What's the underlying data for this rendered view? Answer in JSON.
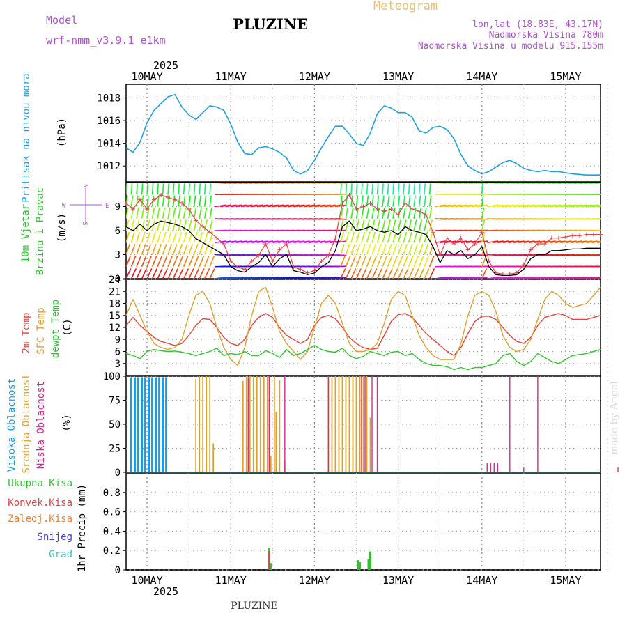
{
  "header": {
    "model_label": "Model",
    "model_name": "wrf-nmm_v3.9.1 e1km",
    "title": "PLUZINE",
    "meteogram": "Meteogram",
    "coords": "lon,lat (18.83E, 43.17N)",
    "elevation": "Nadmorska Visina 780m",
    "model_elevation": "Nadmorska Visina u modelu 915.155m",
    "year": "2025",
    "footer_title": "PLUZINE",
    "credit": "made by Angel"
  },
  "days": [
    "10MAY",
    "11MAY",
    "12MAY",
    "13MAY",
    "14MAY",
    "15MAY"
  ],
  "colors": {
    "pressure": "#1ea0e6",
    "t2m": "#e8403a",
    "tsfc": "#e0a030",
    "dew": "#28c828",
    "high": "#1e9be0",
    "mid": "#e0a030",
    "low": "#d02a8c",
    "total_rain": "#30c030",
    "conv_rain": "#e84040",
    "freezing": "#f08030",
    "snow": "#4040e0",
    "hail": "#30c8c8"
  },
  "panels": {
    "pressure": {
      "label1": "Pritisak na nivou mora",
      "unit": "(hPa)"
    },
    "wind": {
      "label1": "10m Vjetar",
      "label2": "Brzina i Pravac",
      "unit": "(m/s)",
      "compass_n": "N",
      "compass_w": "W",
      "compass_e": "E",
      "compass_s": "S"
    },
    "temp": {
      "label1": "2m Temp",
      "label2": "SFC Temp",
      "label3": "dewpt Temp",
      "unit": "(C)"
    },
    "cloud": {
      "label1": "Visoka Oblacnost",
      "label2": "Srednja Oblacnost",
      "label3": "Niska Oblacnost",
      "unit": "(%)"
    },
    "precip": {
      "legend": [
        "Ukupna Kisa",
        "Konvek.Kisa",
        "Zaledj.Kisa",
        "Snijeg",
        "Grad"
      ],
      "unit": "1hr Precip (mm)"
    }
  },
  "chart_data": [
    {
      "type": "line",
      "name": "Pressure",
      "x_unit": "hours from 10MAY 00",
      "ylabel": "(hPa)",
      "ylim": [
        1010.6,
        1019.2
      ],
      "yticks": [
        1012,
        1014,
        1016,
        1018
      ],
      "x": [
        -6,
        -4,
        -2,
        0,
        2,
        4,
        6,
        8,
        10,
        12,
        14,
        16,
        18,
        20,
        22,
        24,
        26,
        28,
        30,
        32,
        34,
        36,
        38,
        40,
        42,
        44,
        46,
        48,
        50,
        52,
        54,
        56,
        58,
        60,
        62,
        64,
        66,
        68,
        70,
        72,
        74,
        76,
        78,
        80,
        82,
        84,
        86,
        88,
        90,
        92,
        94,
        96,
        98,
        100,
        102,
        104,
        106,
        108,
        110,
        112,
        114,
        116,
        118,
        120,
        122,
        126,
        130
      ],
      "values": [
        1013.6,
        1013.2,
        1014.1,
        1015.8,
        1016.9,
        1017.5,
        1018.1,
        1018.3,
        1017.2,
        1016.5,
        1016.1,
        1016.7,
        1017.3,
        1017.2,
        1016.9,
        1015.7,
        1014.1,
        1013.1,
        1013.0,
        1013.6,
        1013.7,
        1013.5,
        1013.2,
        1012.7,
        1011.6,
        1011.3,
        1011.6,
        1012.5,
        1013.6,
        1014.6,
        1015.5,
        1015.5,
        1014.8,
        1014.0,
        1013.8,
        1014.9,
        1016.6,
        1017.3,
        1017.1,
        1016.7,
        1016.7,
        1016.3,
        1015.1,
        1014.9,
        1015.4,
        1015.5,
        1015.2,
        1014.4,
        1013.0,
        1012.0,
        1011.6,
        1011.3,
        1011.5,
        1011.9,
        1012.3,
        1012.5,
        1012.2,
        1011.8,
        1011.6,
        1011.5,
        1011.6,
        1011.5,
        1011.5,
        1011.4,
        1011.3,
        1011.2,
        1011.2
      ]
    },
    {
      "type": "line",
      "name": "Wind speed",
      "x_unit": "hours from 10MAY 00",
      "ylabel": "(m/s)",
      "ylim": [
        0,
        12
      ],
      "yticks": [
        0,
        3,
        6,
        9
      ],
      "x": [
        -6,
        -4,
        -2,
        0,
        2,
        4,
        6,
        8,
        10,
        12,
        14,
        16,
        18,
        20,
        22,
        24,
        26,
        28,
        30,
        32,
        34,
        36,
        38,
        40,
        42,
        44,
        46,
        48,
        50,
        52,
        54,
        56,
        58,
        60,
        62,
        64,
        66,
        68,
        70,
        72,
        74,
        76,
        78,
        80,
        82,
        84,
        86,
        88,
        90,
        92,
        94,
        96,
        98,
        100,
        102,
        104,
        106,
        108,
        110,
        112,
        114,
        116,
        118,
        120,
        122,
        124,
        126,
        128,
        130
      ],
      "values": [
        6.5,
        6.0,
        6.8,
        6.0,
        6.8,
        7.2,
        7.0,
        6.8,
        6.5,
        6.0,
        5.0,
        4.5,
        4.0,
        3.5,
        3.0,
        1.5,
        1.0,
        0.8,
        1.5,
        2.0,
        3.0,
        1.5,
        2.5,
        3.0,
        1.0,
        0.8,
        0.5,
        0.7,
        1.5,
        2.0,
        3.5,
        6.5,
        7.2,
        6.0,
        6.2,
        6.5,
        6.0,
        5.8,
        6.0,
        5.5,
        6.5,
        6.0,
        5.8,
        5.5,
        4.0,
        2.0,
        3.5,
        3.0,
        3.5,
        2.5,
        3.0,
        4.0,
        1.5,
        0.5,
        0.4,
        0.4,
        0.5,
        1.2,
        2.5,
        3.0,
        3.0,
        3.5,
        3.5,
        3.6,
        3.7,
        3.7,
        3.8,
        3.8,
        3.8
      ]
    },
    {
      "type": "line",
      "name": "Temperature",
      "x_unit": "hours from 10MAY 00",
      "ylabel": "(C)",
      "ylim": [
        0,
        24
      ],
      "yticks": [
        3,
        6,
        9,
        12,
        15,
        18,
        21,
        24
      ],
      "series": [
        {
          "name": "2m Temp",
          "x": [
            -6,
            -4,
            -2,
            0,
            2,
            4,
            6,
            8,
            10,
            12,
            14,
            16,
            18,
            20,
            22,
            24,
            26,
            28,
            30,
            32,
            34,
            36,
            38,
            40,
            42,
            44,
            46,
            48,
            50,
            52,
            54,
            56,
            58,
            60,
            62,
            64,
            66,
            68,
            70,
            72,
            74,
            76,
            78,
            80,
            82,
            84,
            86,
            88,
            90,
            92,
            94,
            96,
            98,
            100,
            102,
            104,
            106,
            108,
            110,
            112,
            114,
            116,
            118,
            120,
            122,
            126,
            130
          ],
          "values": [
            12.5,
            14.5,
            12.5,
            11.0,
            9.5,
            8.5,
            8.0,
            7.5,
            8.0,
            10.0,
            12.5,
            14.2,
            14.0,
            12.0,
            9.5,
            8.0,
            7.5,
            9.0,
            12.5,
            14.5,
            15.5,
            14.5,
            12.0,
            10.0,
            9.0,
            8.0,
            9.0,
            12.5,
            14.5,
            15.0,
            14.2,
            12.0,
            9.5,
            8.0,
            7.0,
            6.5,
            6.8,
            10.0,
            13.5,
            15.2,
            15.5,
            14.5,
            12.5,
            10.5,
            9.0,
            7.5,
            6.0,
            5.0,
            7.0,
            10.5,
            13.5,
            14.8,
            14.8,
            14.0,
            12.0,
            10.0,
            8.5,
            8.0,
            9.5,
            12.5,
            14.5,
            15.0,
            15.5,
            15.0,
            14.0,
            14.0,
            15.0
          ]
        },
        {
          "name": "SFC Temp",
          "x": [
            -6,
            -4,
            -2,
            0,
            2,
            4,
            6,
            8,
            10,
            12,
            14,
            16,
            18,
            20,
            22,
            24,
            26,
            28,
            30,
            32,
            34,
            36,
            38,
            40,
            42,
            44,
            46,
            48,
            50,
            52,
            54,
            56,
            58,
            60,
            62,
            64,
            66,
            68,
            70,
            72,
            74,
            76,
            78,
            80,
            82,
            84,
            86,
            88,
            90,
            92,
            94,
            96,
            98,
            100,
            102,
            104,
            106,
            108,
            110,
            112,
            114,
            116,
            118,
            120,
            122,
            126,
            130
          ],
          "values": [
            15,
            19,
            15,
            11,
            8,
            7,
            6.5,
            7,
            9,
            15,
            20,
            21,
            18,
            12,
            7,
            4,
            2.5,
            7,
            15,
            21,
            22,
            17,
            11,
            8,
            6,
            4,
            6,
            12,
            18,
            20,
            18,
            13,
            8,
            6,
            6,
            6.5,
            8,
            13,
            19,
            21,
            20,
            15,
            10,
            7,
            5,
            4,
            4,
            4,
            8,
            15,
            20,
            21,
            20,
            16,
            10,
            7,
            6,
            6.5,
            9,
            14,
            19,
            21,
            20,
            18,
            17,
            18,
            22
          ]
        },
        {
          "name": "dewpt Temp",
          "x": [
            -6,
            -4,
            -2,
            0,
            2,
            4,
            6,
            8,
            10,
            12,
            14,
            16,
            18,
            20,
            22,
            24,
            26,
            28,
            30,
            32,
            34,
            36,
            38,
            40,
            42,
            44,
            46,
            48,
            50,
            52,
            54,
            56,
            58,
            60,
            62,
            64,
            66,
            68,
            70,
            72,
            74,
            76,
            78,
            80,
            82,
            84,
            86,
            88,
            90,
            92,
            94,
            96,
            98,
            100,
            102,
            104,
            106,
            108,
            110,
            112,
            114,
            116,
            118,
            120,
            122,
            126,
            130
          ],
          "values": [
            5.5,
            5.0,
            4.2,
            6.0,
            6.5,
            6.2,
            6.0,
            6.1,
            5.8,
            5.5,
            5.0,
            5.5,
            6.0,
            6.8,
            5.0,
            5.5,
            5.2,
            6.0,
            5.0,
            5.0,
            6.2,
            5.5,
            4.5,
            6.5,
            5.0,
            5.5,
            6.5,
            7.5,
            6.5,
            6.0,
            5.8,
            6.8,
            5.0,
            4.2,
            4.8,
            6.0,
            5.5,
            5.0,
            5.8,
            6.0,
            5.0,
            5.5,
            4.0,
            3.0,
            2.5,
            2.5,
            2.2,
            1.5,
            2.0,
            1.5,
            2.0,
            2.0,
            2.5,
            3.0,
            5.0,
            5.5,
            3.5,
            2.5,
            3.5,
            5.5,
            4.5,
            3.5,
            3.0,
            4.0,
            5.0,
            5.5,
            6.5
          ]
        }
      ]
    },
    {
      "type": "bar",
      "name": "Cloud cover",
      "x_unit": "hours from 10MAY 00",
      "ylabel": "(%)",
      "ylim": [
        0,
        100
      ],
      "yticks": [
        0,
        25,
        50,
        75,
        100
      ],
      "series": [
        {
          "name": "Visoka Oblacnost",
          "x": [
            -4.5,
            -3.5,
            -2.5,
            -1.5,
            -0.5,
            0.5,
            1.5,
            2.5,
            3.5,
            4.5,
            5.5,
            6.5,
            7.5,
            8.5,
            9.5,
            10.5
          ],
          "values": [
            99,
            99,
            99,
            99,
            99,
            99,
            99,
            99,
            99,
            99,
            99,
            0,
            0,
            0,
            0,
            0
          ]
        },
        {
          "name": "Srednja Oblacnost",
          "x": [
            14,
            15,
            16,
            17,
            18,
            19,
            27.5,
            28.5,
            29.5,
            30.5,
            31.5,
            32.5,
            33.5,
            34.5,
            35.5,
            36.5,
            37,
            38,
            39.5,
            52,
            53,
            54,
            55,
            56,
            57,
            58,
            59,
            60,
            61,
            62,
            63,
            64
          ],
          "values": [
            97,
            100,
            100,
            100,
            100,
            30,
            95,
            100,
            100,
            100,
            100,
            100,
            100,
            100,
            17,
            100,
            63,
            96,
            12,
            100,
            98,
            100,
            100,
            100,
            100,
            100,
            100,
            100,
            100,
            100,
            100,
            57
          ]
        },
        {
          "name": "Niska Oblacnost",
          "x": [
            29,
            35,
            39.5,
            52,
            61.5,
            62.5,
            64.5,
            66,
            97.5,
            98.5,
            99.5,
            100.5,
            104,
            108,
            112,
            135
          ],
          "values": [
            99,
            100,
            100,
            100,
            100,
            100,
            100,
            100,
            10,
            10,
            10,
            10,
            100,
            5,
            100,
            5
          ]
        }
      ]
    },
    {
      "type": "bar",
      "name": "1hr Precip",
      "x_unit": "hours from 10MAY 00",
      "ylabel": "1hr Precip (mm)",
      "ylim": [
        0,
        1.0
      ],
      "yticks": [
        0,
        0.2,
        0.4,
        0.6,
        0.8
      ],
      "series": [
        {
          "name": "Ukupna Kisa",
          "x": [
            35,
            35.5,
            60.5,
            61,
            63.5,
            64
          ],
          "values": [
            0.23,
            0.07,
            0.1,
            0.08,
            0.11,
            0.19
          ]
        },
        {
          "name": "Konvek.Kisa",
          "x": [
            35
          ],
          "values": [
            0.19
          ]
        }
      ]
    }
  ]
}
